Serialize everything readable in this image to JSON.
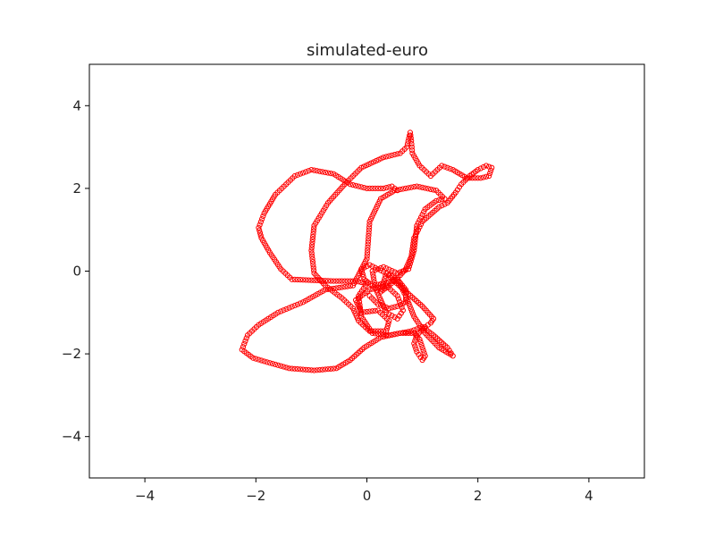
{
  "chart_data": {
    "type": "scatter",
    "title": "simulated-euro",
    "xlabel": "",
    "ylabel": "",
    "xlim": [
      -5,
      5
    ],
    "ylim": [
      -5,
      5
    ],
    "x_ticks": [
      -4,
      -2,
      0,
      2,
      4
    ],
    "y_ticks": [
      4,
      2,
      0,
      -2,
      -4
    ],
    "x_tick_labels": [
      "−4",
      "−2",
      "0",
      "2",
      "4"
    ],
    "y_tick_labels": [
      "4",
      "2",
      "0",
      "−2",
      "−4"
    ],
    "grid": false,
    "marker": "hollow-circle",
    "color": "#ff0000",
    "path": [
      [
        0.55,
        1.95
      ],
      [
        0.45,
        2.05
      ],
      [
        0.3,
        2.0
      ],
      [
        0.0,
        2.0
      ],
      [
        -0.3,
        2.1
      ],
      [
        -0.6,
        2.35
      ],
      [
        -1.0,
        2.45
      ],
      [
        -1.3,
        2.3
      ],
      [
        -1.65,
        1.85
      ],
      [
        -1.85,
        1.4
      ],
      [
        -1.95,
        1.05
      ],
      [
        -1.9,
        0.8
      ],
      [
        -1.75,
        0.45
      ],
      [
        -1.55,
        0.05
      ],
      [
        -1.35,
        -0.2
      ],
      [
        -1.0,
        -0.22
      ],
      [
        -0.6,
        -0.24
      ],
      [
        -0.2,
        -0.24
      ],
      [
        0.0,
        -0.3
      ],
      [
        -0.15,
        -0.6
      ],
      [
        -0.1,
        -1.1
      ],
      [
        0.1,
        -1.5
      ],
      [
        0.4,
        -1.55
      ],
      [
        0.8,
        -1.45
      ],
      [
        1.0,
        -1.35
      ],
      [
        1.2,
        -1.55
      ],
      [
        1.45,
        -1.85
      ],
      [
        1.55,
        -2.05
      ],
      [
        1.3,
        -1.85
      ],
      [
        1.05,
        -1.5
      ],
      [
        0.85,
        -1.1
      ],
      [
        0.7,
        -0.6
      ],
      [
        0.55,
        -0.2
      ],
      [
        0.35,
        -0.05
      ],
      [
        0.25,
        -0.5
      ],
      [
        0.4,
        -0.35
      ],
      [
        0.6,
        -0.1
      ],
      [
        0.7,
        0.05
      ],
      [
        0.8,
        0.35
      ],
      [
        0.85,
        0.8
      ],
      [
        1.0,
        1.2
      ],
      [
        1.3,
        1.55
      ],
      [
        1.45,
        1.65
      ],
      [
        1.6,
        1.9
      ],
      [
        1.7,
        2.1
      ],
      [
        1.85,
        2.3
      ],
      [
        2.0,
        2.45
      ],
      [
        2.15,
        2.55
      ],
      [
        2.25,
        2.5
      ],
      [
        2.2,
        2.3
      ],
      [
        2.05,
        2.25
      ],
      [
        1.8,
        2.25
      ],
      [
        1.55,
        2.45
      ],
      [
        1.35,
        2.55
      ],
      [
        1.15,
        2.3
      ],
      [
        0.95,
        2.55
      ],
      [
        0.82,
        2.85
      ],
      [
        0.8,
        3.15
      ],
      [
        0.78,
        3.35
      ],
      [
        0.72,
        3.0
      ],
      [
        0.6,
        2.85
      ],
      [
        0.3,
        2.75
      ],
      [
        -0.1,
        2.5
      ],
      [
        -0.4,
        2.1
      ],
      [
        -0.7,
        1.65
      ],
      [
        -0.95,
        1.1
      ],
      [
        -1.0,
        0.5
      ],
      [
        -0.95,
        -0.05
      ],
      [
        -0.75,
        -0.35
      ],
      [
        -0.45,
        -0.65
      ],
      [
        -0.25,
        -0.9
      ],
      [
        -0.15,
        -1.2
      ],
      [
        0.05,
        -1.45
      ],
      [
        0.35,
        -1.45
      ],
      [
        0.4,
        -1.2
      ],
      [
        0.2,
        -0.95
      ],
      [
        -0.1,
        -1.0
      ],
      [
        -0.2,
        -0.7
      ],
      [
        0.05,
        -0.45
      ],
      [
        0.35,
        -0.35
      ],
      [
        0.55,
        -0.6
      ],
      [
        0.65,
        -0.95
      ],
      [
        0.55,
        -1.15
      ],
      [
        0.35,
        -1.0
      ],
      [
        0.15,
        -0.4
      ],
      [
        0.1,
        0.0
      ],
      [
        0.3,
        0.1
      ],
      [
        0.55,
        -0.05
      ],
      [
        0.75,
        0.05
      ],
      [
        0.85,
        0.5
      ],
      [
        0.9,
        1.1
      ],
      [
        1.05,
        1.5
      ],
      [
        1.25,
        1.7
      ],
      [
        1.4,
        1.75
      ],
      [
        1.25,
        1.95
      ],
      [
        0.9,
        2.05
      ],
      [
        0.5,
        1.95
      ],
      [
        0.25,
        1.75
      ],
      [
        0.05,
        1.2
      ],
      [
        0.0,
        0.3
      ],
      [
        -0.25,
        -0.35
      ],
      [
        -0.75,
        -0.45
      ],
      [
        -1.15,
        -0.75
      ],
      [
        -1.6,
        -1.0
      ],
      [
        -1.95,
        -1.3
      ],
      [
        -2.15,
        -1.55
      ],
      [
        -2.25,
        -1.9
      ],
      [
        -2.05,
        -2.1
      ],
      [
        -1.8,
        -2.2
      ],
      [
        -1.4,
        -2.35
      ],
      [
        -0.95,
        -2.4
      ],
      [
        -0.55,
        -2.35
      ],
      [
        -0.3,
        -2.15
      ],
      [
        -0.05,
        -1.85
      ],
      [
        0.25,
        -1.6
      ],
      [
        0.6,
        -1.5
      ],
      [
        0.85,
        -1.5
      ],
      [
        0.95,
        -1.65
      ],
      [
        1.0,
        -1.85
      ],
      [
        1.05,
        -2.05
      ],
      [
        1.0,
        -2.15
      ],
      [
        0.9,
        -1.95
      ],
      [
        0.85,
        -1.75
      ],
      [
        0.9,
        -1.55
      ],
      [
        1.05,
        -1.35
      ],
      [
        1.15,
        -1.25
      ],
      [
        1.2,
        -1.15
      ],
      [
        1.0,
        -0.85
      ],
      [
        0.75,
        -0.55
      ],
      [
        0.5,
        -0.25
      ],
      [
        0.35,
        -0.05
      ],
      [
        0.2,
        0.05
      ],
      [
        0.05,
        0.15
      ],
      [
        -0.1,
        0.05
      ],
      [
        -0.05,
        -0.2
      ],
      [
        0.1,
        -0.35
      ],
      [
        0.3,
        -0.3
      ],
      [
        0.55,
        -0.2
      ],
      [
        0.7,
        -0.45
      ],
      [
        0.7,
        -0.75
      ],
      [
        0.55,
        -0.85
      ],
      [
        0.4,
        -0.9
      ],
      [
        0.2,
        -0.8
      ],
      [
        0.05,
        -0.6
      ]
    ]
  }
}
